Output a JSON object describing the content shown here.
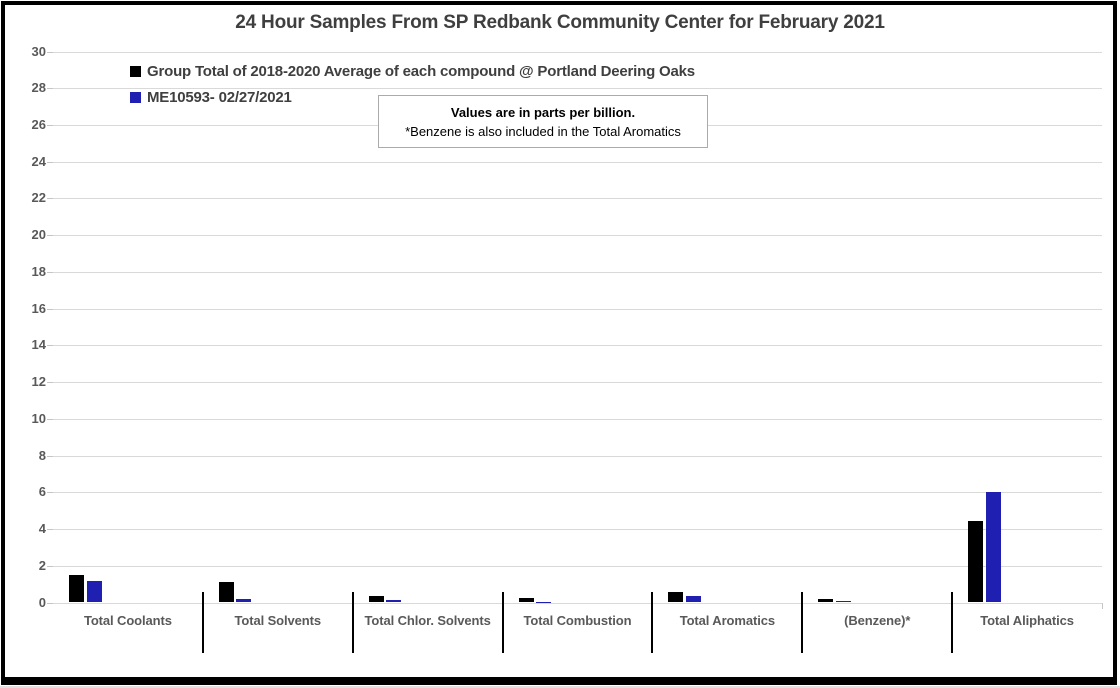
{
  "chart_data": {
    "type": "bar",
    "title": "24 Hour Samples From SP Redbank Community Center for February 2021",
    "unit_note": {
      "line1": "Values are in parts per billion.",
      "line2": "*Benzene is also included in the Total Aromatics"
    },
    "categories": [
      "Total Coolants",
      "Total Solvents",
      "Total Chlor. Solvents",
      "Total Combustion",
      "Total Aromatics",
      "(Benzene)*",
      "Total Aliphatics"
    ],
    "series": [
      {
        "name": "Group Total of 2018-2020 Average of each compound @ Portland Deering Oaks",
        "color": "#000000",
        "values": [
          1.5,
          1.1,
          0.35,
          0.25,
          0.55,
          0.2,
          4.45
        ]
      },
      {
        "name": "ME10593- 02/27/2021",
        "color": "#1F1FB2",
        "values": [
          1.15,
          0.2,
          0.15,
          0.05,
          0.35,
          0.1,
          6.0
        ]
      }
    ],
    "ylabel": "",
    "xlabel": "",
    "ylim": [
      0,
      30
    ],
    "ytick_step": 2,
    "grid": true,
    "legend_position": "top-left"
  },
  "colors": {
    "grid": "#d9d9d9",
    "axis_text": "#595959",
    "title_text": "#3f3f3f",
    "separator": "#000000"
  }
}
